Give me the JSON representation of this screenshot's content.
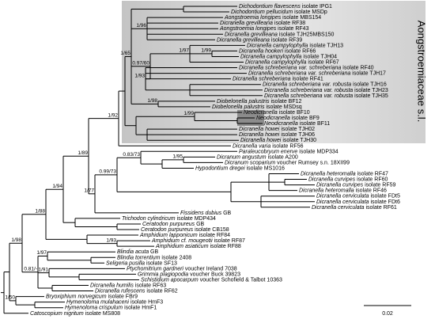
{
  "clade_label": "Aongstroemiaceae s.l.",
  "scale_label": "0.02",
  "supports": [
    "1/65",
    "1/96",
    "0.97/60",
    "1/97",
    "1/99",
    "1/93",
    "1/98",
    "1/99",
    "1/92",
    "1/89",
    "1/94",
    "0.83/73",
    "1/95",
    "0.99/73",
    "1/77",
    "1/88",
    "1/98",
    "1/93",
    "1/97",
    "1/91",
    "0.81/-",
    "1/50"
  ],
  "leaves": [
    {
      "taxon": "Dichodontium flavescens",
      "voucher": "isolate IPG1"
    },
    {
      "taxon": "Dichodontium pellucidum",
      "voucher": "isolate MSDp"
    },
    {
      "taxon": "Aongstroemia longipes",
      "voucher": "isolate MBS154"
    },
    {
      "taxon": "Dicranella grevilleana",
      "voucher": "isolate RF38"
    },
    {
      "taxon": "Aongstroemia longipes",
      "voucher": "isolate RF43"
    },
    {
      "taxon": "Dicranella grevilleana",
      "voucher": "isolate TJH25MBS150"
    },
    {
      "taxon": "Dicranella grevilleana",
      "voucher": "isolate RF39"
    },
    {
      "taxon": "Dicranella campylophylla",
      "voucher": "isolate TJH13"
    },
    {
      "taxon": "Dicranella hookeri",
      "voucher": "isolate RF66"
    },
    {
      "taxon": "Dicranella campylophylla",
      "voucher": "isolate TJH04"
    },
    {
      "taxon": "Dicranella campylophylla",
      "voucher": "isolate RF67"
    },
    {
      "taxon": "Dicranella schreberiana var. schreberiana",
      "voucher": "isolate RF40"
    },
    {
      "taxon": "Dicranella schreberiana var. schreberiana",
      "voucher": "isolate TJH17"
    },
    {
      "taxon": "Dicranella schreberiana",
      "voucher": "isolate RF41"
    },
    {
      "taxon": "Dicranella schreberiana var. robusta",
      "voucher": "isolate TJH16"
    },
    {
      "taxon": "Dicranella schreberiana var. robusta",
      "voucher": "isolate TJH23"
    },
    {
      "taxon": "Dicranella schreberiana var. robusta",
      "voucher": "isolate TJH35"
    },
    {
      "taxon": "Diobelonella palustris",
      "voucher": "isolate BF12"
    },
    {
      "taxon": "Diobelonella palustris",
      "voucher": "isolate MSDsq"
    },
    {
      "taxon": "Neodicranella",
      "voucher": "isolate BF10"
    },
    {
      "taxon": "Neodicranella",
      "voucher": "isolate BF9"
    },
    {
      "taxon": "Neodicranella",
      "voucher": "isolate BF11"
    },
    {
      "taxon": "Dicranella howei",
      "voucher": "isolate TJH02"
    },
    {
      "taxon": "Dicranella howei",
      "voucher": "isolate TJH06"
    },
    {
      "taxon": "Dicranella howei",
      "voucher": "isolate TJH30"
    },
    {
      "taxon": "Dicranella varia",
      "voucher": "isolate RF56"
    },
    {
      "taxon": "Paraleucobryum enerve",
      "voucher": "isolate MDP334"
    },
    {
      "taxon": "Dicranum angustum",
      "voucher": "isolate A200"
    },
    {
      "taxon": "Dicranum scoparium",
      "voucher": "voucher Rumsey s.n. 18XII99"
    },
    {
      "taxon": "Hypodontium dregei",
      "voucher": "isolate MS1016"
    },
    {
      "taxon": "Dicranella heteromalla",
      "voucher": "isolate RF47"
    },
    {
      "taxon": "Dicranella curvipes",
      "voucher": "isolate RF60"
    },
    {
      "taxon": "Dicranella curvipes",
      "voucher": "isolate RF59"
    },
    {
      "taxon": "Dicranella heteromalla",
      "voucher": "isolate RF46"
    },
    {
      "taxon": "Dicranella cerviculata",
      "voucher": "isolate FDt5"
    },
    {
      "taxon": "Dicranella cerviculata",
      "voucher": "isolate FDt6"
    },
    {
      "taxon": "Dicranella cerviculata",
      "voucher": "isolate RF61"
    },
    {
      "taxon": "Fissidens dubius",
      "voucher": "GB"
    },
    {
      "taxon": "Trichodon cylindricum",
      "voucher": "isolate MDP434"
    },
    {
      "taxon": "Ceratodon purpureus",
      "voucher": "GB"
    },
    {
      "taxon": "Ceratodon purpureus",
      "voucher": "isolate CB158"
    },
    {
      "taxon": "Amphidium lapponicum",
      "voucher": "isolate RF84"
    },
    {
      "taxon": "Amphidium cf. mougeotii",
      "voucher": "isolate RF87"
    },
    {
      "taxon": "Amphidium asiaticum",
      "voucher": "isolate RF88"
    },
    {
      "taxon": "Blindia acuta",
      "voucher": "GB"
    },
    {
      "taxon": "Blindia torrentium",
      "voucher": "isolate 2408"
    },
    {
      "taxon": "Seligeria pusilla",
      "voucher": "isolate SF13"
    },
    {
      "taxon": "Ptychomitrium gardneri",
      "voucher": "voucher Ireland 7038"
    },
    {
      "taxon": "Grimmia plagiopodia",
      "voucher": "voucher Buck 39823"
    },
    {
      "taxon": "Schistidium apocarpum",
      "voucher": "voucher Schofield & Talbot 10363"
    },
    {
      "taxon": "Dicranella humilis",
      "voucher": "isolate RF63"
    },
    {
      "taxon": "Dicranella rufescens",
      "voucher": "isolate RF62"
    },
    {
      "taxon": "Bryoxiphium norvegicum",
      "voucher": "isolate FBr9"
    },
    {
      "taxon": "Hymenoloma mulahaceni",
      "voucher": "isolate HmF3"
    },
    {
      "taxon": "Hymenoloma crispulum",
      "voucher": "isolate HmF1"
    },
    {
      "taxon": "Catoscopium nigritum",
      "voucher": "isolate MS808"
    }
  ]
}
